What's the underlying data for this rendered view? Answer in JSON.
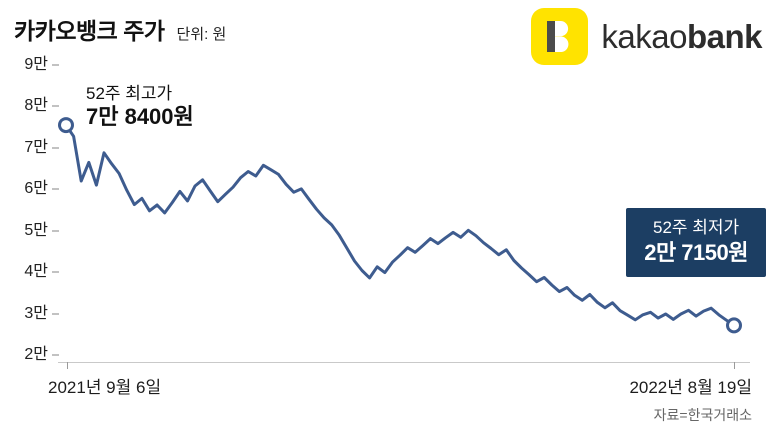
{
  "header": {
    "title": "카카오뱅크 주가",
    "unit": "단위: 원",
    "logo": {
      "letter": "B",
      "wordmark_light": "kakao",
      "wordmark_bold": "bank",
      "bg_color": "#FFE300",
      "stem_color": "#4b4b4b"
    }
  },
  "axis": {
    "y_labels": [
      "9만",
      "8만",
      "7만",
      "6만",
      "5만",
      "4만",
      "3만",
      "2만"
    ],
    "x_start": "2021년 9월 6일",
    "x_end": "2022년 8월 19일"
  },
  "annotations": {
    "high_label": "52주 최고가",
    "high_value": "7만 8400원",
    "low_label": "52주 최저가",
    "low_value": "2만 7150원",
    "low_box_color": "#1c3e63"
  },
  "source": "자료=한국거래소",
  "chart_data": {
    "type": "line",
    "title": "카카오뱅크 주가",
    "ylabel": "원",
    "ylim": [
      20000,
      90000
    ],
    "x_range": [
      "2021년 9월 6일",
      "2022년 8월 19일"
    ],
    "line_color": "#3e5c8f",
    "annotated_high": 78400,
    "annotated_low": 27150,
    "values": [
      75500,
      72800,
      62000,
      66500,
      61000,
      68800,
      66200,
      63800,
      59800,
      56300,
      57800,
      54800,
      56200,
      54300,
      56800,
      59500,
      57200,
      60800,
      62300,
      59600,
      57000,
      58800,
      60500,
      62800,
      64300,
      63200,
      65800,
      64700,
      63600,
      61200,
      59300,
      60100,
      57600,
      55200,
      53100,
      51400,
      48900,
      45800,
      42700,
      40400,
      38600,
      41300,
      39900,
      42400,
      44100,
      45900,
      44800,
      46400,
      48100,
      46900,
      48300,
      49600,
      48400,
      50100,
      48800,
      47100,
      45700,
      44200,
      45400,
      42800,
      41000,
      39400,
      37700,
      38700,
      36900,
      35300,
      36300,
      34400,
      33200,
      34600,
      32700,
      31400,
      32600,
      30700,
      29600,
      28500,
      29700,
      30300,
      28900,
      29900,
      28600,
      29900,
      30800,
      29400,
      30600,
      31300,
      29700,
      28400,
      27150
    ],
    "markers": [
      {
        "position": "first",
        "value": 75500
      },
      {
        "position": "last",
        "value": 27150
      }
    ]
  }
}
